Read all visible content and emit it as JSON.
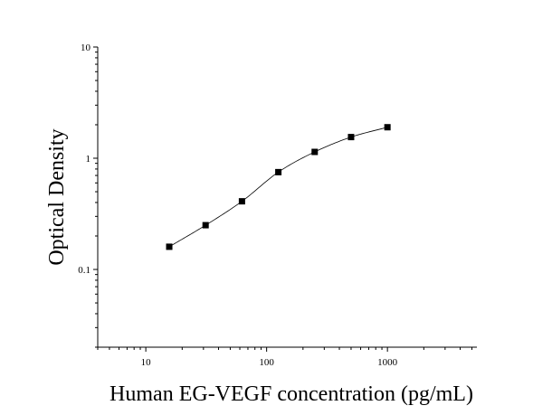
{
  "chart_data": {
    "type": "scatter",
    "title": "",
    "xlabel": "Human EG-VEGF concentration (pg/mL)",
    "ylabel": "Optical Density",
    "x_scale": "log",
    "y_scale": "log",
    "xlim": [
      4,
      5500
    ],
    "ylim": [
      0.02,
      10
    ],
    "x_ticks": [
      10,
      100,
      1000
    ],
    "x_tick_labels": [
      "10",
      "100",
      "1000"
    ],
    "y_ticks": [
      0.1,
      1,
      10
    ],
    "y_tick_labels": [
      "0.1",
      "1",
      "10"
    ],
    "grid": false,
    "legend": "none",
    "series": [
      {
        "marker": "square",
        "fitted_curve": true,
        "color": "#000000",
        "x": [
          15.63,
          31.25,
          62.5,
          125,
          250,
          500,
          1000
        ],
        "y": [
          0.16,
          0.25,
          0.41,
          0.75,
          1.14,
          1.55,
          1.9
        ]
      }
    ]
  }
}
